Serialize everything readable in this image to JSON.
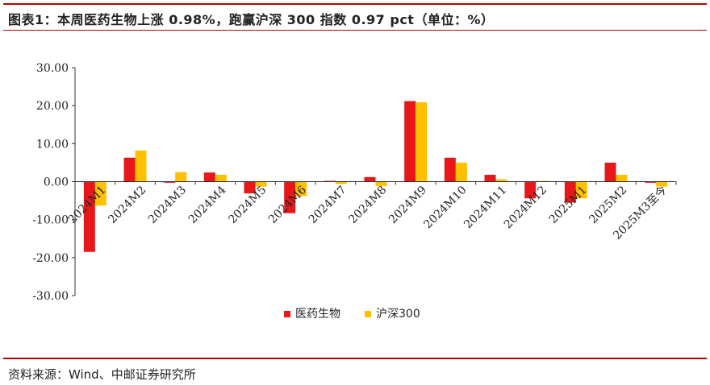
{
  "title": "图表1：本周医药生物上涨 0.98%，跑赢沪深 300 指数 0.97 pct（单位：%）",
  "source": "资料来源：Wind、中邮证券研究所",
  "colors": {
    "accent": "#c00000",
    "series1": "#e8181a",
    "series2": "#ffc000"
  },
  "chart_data": {
    "type": "bar",
    "categories": [
      "2024M1",
      "2024M2",
      "2024M3",
      "2024M4",
      "2024M5",
      "2024M6",
      "2024M7",
      "2024M8",
      "2024M9",
      "2024M10",
      "2024M11",
      "2024M12",
      "2025M1",
      "2025M2",
      "2025M3至今"
    ],
    "series": [
      {
        "name": "医药生物",
        "color": "#e8181a",
        "values": [
          -18.5,
          6.3,
          -0.3,
          2.4,
          -3.1,
          -8.3,
          0.2,
          1.2,
          21.2,
          6.3,
          1.8,
          -4.4,
          -5.5,
          5.0,
          -0.3
        ]
      },
      {
        "name": "沪深300",
        "color": "#ffc000",
        "values": [
          -6.3,
          8.2,
          2.5,
          1.8,
          -1.3,
          -3.8,
          -0.6,
          -1.2,
          20.9,
          5.0,
          0.6,
          0.2,
          -4.4,
          1.8,
          -1.3
        ]
      }
    ],
    "ylim": [
      -30,
      30
    ],
    "yticks": [
      "30.00",
      "20.00",
      "10.00",
      "0.00",
      "-10.00",
      "-20.00",
      "-30.00"
    ],
    "xlabel": "",
    "ylabel": "",
    "grid": false,
    "legend": "bottom-center"
  }
}
